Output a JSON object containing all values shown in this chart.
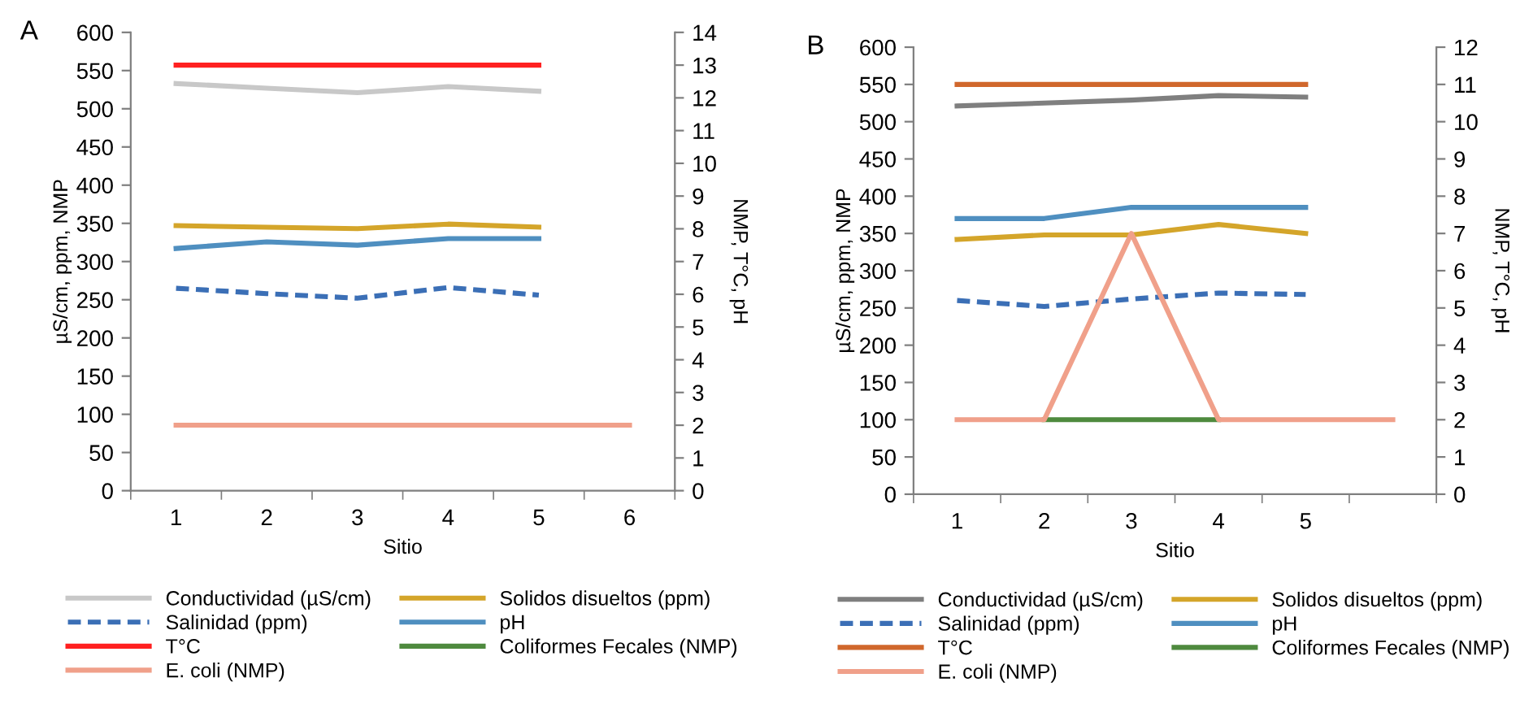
{
  "chart_data": [
    {
      "type": "line",
      "title": "A",
      "xlabel": "Sitio",
      "ylabel": "µS/cm, ppm, NMP",
      "y2label": "NMP, T°C, pH",
      "categories": [
        "1",
        "2",
        "3",
        "4",
        "5",
        "6"
      ],
      "ylim": [
        0,
        600
      ],
      "yticks": [
        0,
        50,
        100,
        150,
        200,
        250,
        300,
        350,
        400,
        450,
        500,
        550,
        600
      ],
      "y2lim": [
        0,
        14
      ],
      "y2ticks": [
        0,
        1,
        2,
        3,
        4,
        5,
        6,
        7,
        8,
        9,
        10,
        11,
        12,
        13,
        14
      ],
      "grid": false,
      "legend": "bottom",
      "marker": "none",
      "series": [
        {
          "name": "Conductividad (µS/cm)",
          "color": "#c8c8c8",
          "values": [
            533,
            527,
            521,
            529,
            523,
            null
          ]
        },
        {
          "name": "Solidos disueltos (ppm)",
          "color": "#d4a52a",
          "values": [
            347,
            345,
            343,
            349,
            345,
            null
          ]
        },
        {
          "name": "Salinidad (ppm)",
          "color": "#3b6fb6",
          "line_style": "dashed",
          "values": [
            265,
            258,
            252,
            266,
            256,
            null
          ]
        },
        {
          "name": "pH",
          "color": "#4f8fc0",
          "axis": "y2",
          "values": [
            7.4,
            7.6,
            7.5,
            7.7,
            7.7,
            null
          ]
        },
        {
          "name": "T°C",
          "color": "#ff2020",
          "axis": "y2",
          "values": [
            13,
            13,
            13,
            13,
            13,
            null
          ]
        },
        {
          "name": "Coliformes Fecales (NMP)",
          "color": "#4e8a3e",
          "axis": "y2",
          "values": [
            null,
            null,
            null,
            null,
            null,
            null
          ]
        },
        {
          "name": "E. coli (NMP)",
          "color": "#f0a08a",
          "axis": "y2",
          "values": [
            2,
            2,
            2,
            2,
            2,
            2
          ]
        }
      ]
    },
    {
      "type": "line",
      "title": "B",
      "xlabel": "Sitio",
      "ylabel": "µS/cm, ppm, NMP",
      "y2label": "NMP, T°C, pH",
      "categories": [
        "1",
        "2",
        "3",
        "4",
        "5",
        null
      ],
      "ylim": [
        0,
        600
      ],
      "yticks": [
        0,
        50,
        100,
        150,
        200,
        250,
        300,
        350,
        400,
        450,
        500,
        550,
        600
      ],
      "y2lim": [
        0,
        12
      ],
      "y2ticks": [
        0,
        1,
        2,
        3,
        4,
        5,
        6,
        7,
        8,
        9,
        10,
        11,
        12
      ],
      "grid": false,
      "legend": "bottom",
      "marker": "none",
      "series": [
        {
          "name": "Conductividad (µS/cm)",
          "color": "#7f7f7f",
          "values": [
            521,
            525,
            529,
            535,
            533,
            null
          ]
        },
        {
          "name": "Solidos disueltos (ppm)",
          "color": "#d4a52a",
          "values": [
            342,
            348,
            348,
            362,
            350,
            null
          ]
        },
        {
          "name": "Salinidad (ppm)",
          "color": "#3b6fb6",
          "line_style": "dashed",
          "values": [
            260,
            252,
            262,
            270,
            268,
            null
          ]
        },
        {
          "name": "pH",
          "color": "#4f8fc0",
          "axis": "y2",
          "values": [
            7.4,
            7.4,
            7.7,
            7.7,
            7.7,
            null
          ]
        },
        {
          "name": "T°C",
          "color": "#d0672c",
          "axis": "y2",
          "values": [
            11,
            11,
            11,
            11,
            11,
            null
          ]
        },
        {
          "name": "Coliformes Fecales (NMP)",
          "color": "#4e8a3e",
          "axis": "y2",
          "values": [
            null,
            2,
            2,
            2,
            null,
            null
          ]
        },
        {
          "name": "E. coli (NMP)",
          "color": "#f0a08a",
          "axis": "y2",
          "values": [
            2,
            2,
            7,
            2,
            2,
            2
          ]
        }
      ]
    }
  ]
}
